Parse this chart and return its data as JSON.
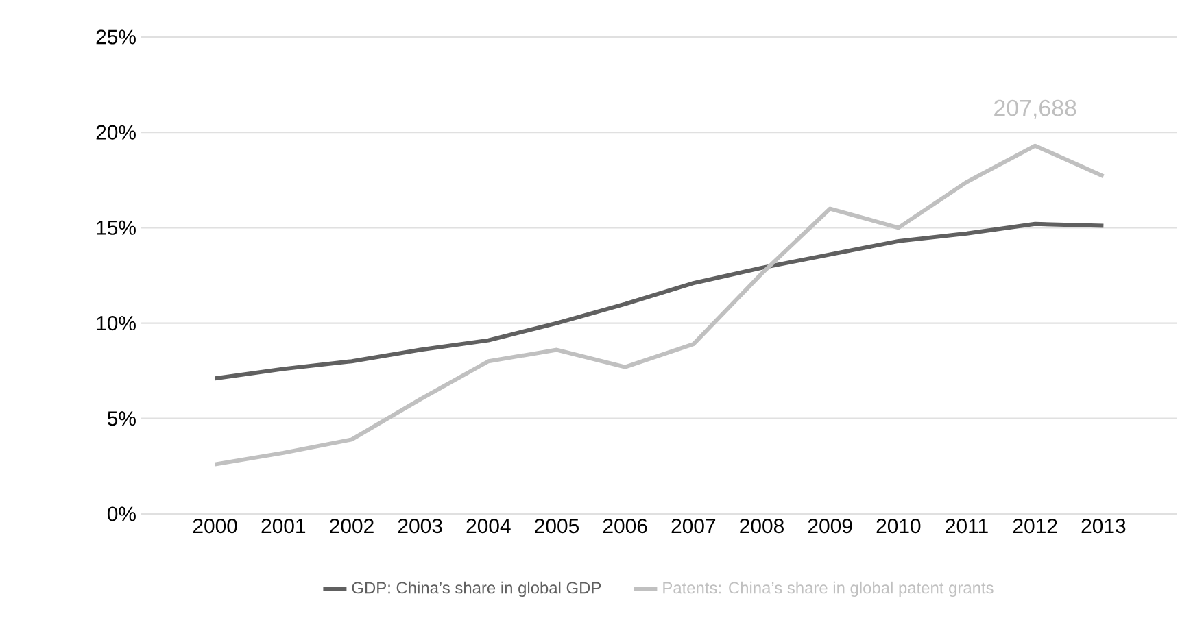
{
  "chart_data": {
    "type": "line",
    "categories": [
      "2000",
      "2001",
      "2002",
      "2003",
      "2004",
      "2005",
      "2006",
      "2007",
      "2008",
      "2009",
      "2010",
      "2011",
      "2012",
      "2013"
    ],
    "series": [
      {
        "name": "GDP: China’s share in global GDP",
        "color": "#606060",
        "values": [
          7.1,
          7.6,
          8.0,
          8.6,
          9.1,
          10.0,
          11.0,
          12.1,
          12.9,
          13.6,
          14.3,
          14.7,
          15.2,
          15.1
        ]
      },
      {
        "name": "Patents: China’s share in global patent grants",
        "color": "#c0c0c0",
        "values": [
          2.6,
          3.2,
          3.9,
          6.0,
          8.0,
          8.6,
          7.7,
          8.9,
          12.6,
          16.0,
          15.0,
          17.4,
          19.3,
          17.7
        ]
      }
    ],
    "ylim": [
      0,
      25
    ],
    "yticks": [
      {
        "value": 0,
        "label": "0%"
      },
      {
        "value": 5,
        "label": "5%"
      },
      {
        "value": 10,
        "label": "10%"
      },
      {
        "value": 15,
        "label": "15%"
      },
      {
        "value": 20,
        "label": "20%"
      },
      {
        "value": 25,
        "label": "25%"
      }
    ],
    "grid": "y",
    "legend": "bottom",
    "marker": "none",
    "line_style": "solid",
    "annotations": [
      {
        "text": "207,688",
        "x": "2012",
        "y": 19.3
      }
    ]
  }
}
